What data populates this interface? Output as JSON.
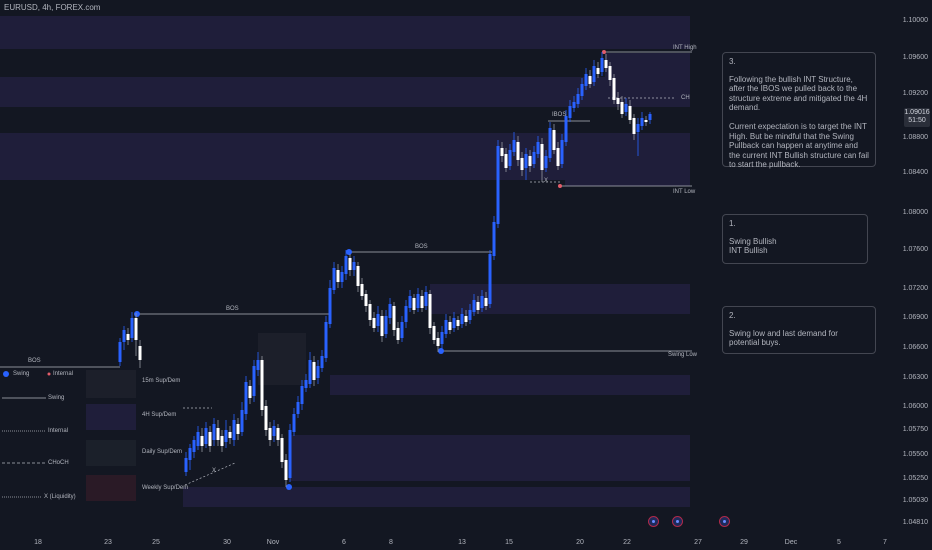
{
  "symbol_title": "EURUSD, 4h, FOREX.com",
  "price_axis": [
    "1.10000",
    "1.09600",
    "1.09200",
    "1.08800",
    "1.08400",
    "1.08000",
    "1.07600",
    "1.07200",
    "1.06900",
    "1.06600",
    "1.06300",
    "1.06000",
    "1.05750",
    "1.05500",
    "1.05250",
    "1.05030",
    "1.04810"
  ],
  "current_price": {
    "value": "1.09016",
    "countdown": "51:50"
  },
  "date_axis": [
    "18",
    "23",
    "25",
    "30",
    "Nov",
    "6",
    "8",
    "13",
    "15",
    "20",
    "22",
    "27",
    "29",
    "Dec",
    "5",
    "7"
  ],
  "chart_tags": {
    "int_high": "INT High",
    "ch": "CH",
    "ibos": "IBOS",
    "x_mark": "X",
    "int_low": "INT Low",
    "bos_top": "BOS",
    "bos_mid": "BOS",
    "bos_left": "BOS",
    "swing_low": "Swing Low",
    "x_liquidity_mark": "X"
  },
  "legend": {
    "swing": "Swing",
    "internal": "Internal",
    "sup_dem_15m": "15m Sup/Dem",
    "sup_dem_4h": "4H Sup/Dem",
    "sup_dem_daily": "Daily Sup/Dem",
    "sup_dem_weekly": "Weekly Sup/Dem",
    "line_swing": "Swing",
    "line_internal": "Internal",
    "line_choch": "CHoCH",
    "line_liquidity": "X (Liquidity)"
  },
  "notes": {
    "note3": {
      "number": "3.",
      "para1": "Following the bullish INT Structure, after the IBOS we pulled back to the structure extreme and mitigated the 4H demand.",
      "para2": "Current expectation is to target the INT High. But be mindful that the Swing Pullback can happen at anytime and the current INT Bullish structure can fail to start the pullback."
    },
    "note1": {
      "number": "1.",
      "line1": "Swing Bullish",
      "line2": "INT Bullish"
    },
    "note2": {
      "number": "2.",
      "para": "Swing low and last demand for potential buys."
    }
  },
  "colors": {
    "bull": "#2962ff",
    "bear": "#ffffff",
    "zone": "#1f1e3a",
    "background": "#131722"
  }
}
